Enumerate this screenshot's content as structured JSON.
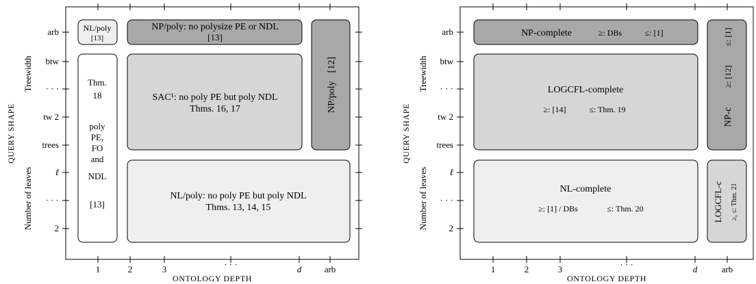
{
  "left_panel": {
    "y_group_top": "Treewidth",
    "y_group_bottom": "Number of leaves",
    "y_axis_title": "QUERY SHAPE",
    "x_axis_title": "ONTOLOGY DEPTH",
    "y_ticks": [
      "arb",
      "btw",
      "· · ·",
      "tw 2",
      "trees",
      "ℓ",
      "· · ·",
      "2"
    ],
    "x_ticks": [
      "1",
      "2",
      "3",
      "· · ·",
      "d",
      "arb"
    ],
    "regions": {
      "nlpoly_small": {
        "line1": "NL/poly",
        "line2": "[13]"
      },
      "nppoly_top": {
        "line1": "NP/poly: no polysize PE or NDL",
        "line2": "[13]"
      },
      "nppoly_right": {
        "line1": "NP/poly",
        "line2": "[12]"
      },
      "depth1_column": {
        "lines": [
          "Thm.",
          "18",
          "poly",
          "PE,",
          "FO",
          "and",
          "NDL",
          "[13]"
        ]
      },
      "sac1": {
        "line1": "SAC¹: no poly PE but poly NDL",
        "line2": "Thms. 16, 17"
      },
      "nlpoly_big": {
        "line1": "NL/poly: no poly PE but poly NDL",
        "line2": "Thms. 13, 14, 15"
      }
    }
  },
  "right_panel": {
    "y_group_top": "Treewidth",
    "y_group_bottom": "Number of leaves",
    "y_axis_title": "QUERY SHAPE",
    "x_axis_title": "ONTOLOGY DEPTH",
    "y_ticks": [
      "arb",
      "btw",
      "· · ·",
      "tw 2",
      "trees",
      "ℓ",
      "· · ·",
      "2"
    ],
    "x_ticks": [
      "1",
      "2",
      "3",
      "· · ·",
      "d",
      "arb"
    ],
    "regions": {
      "np_complete": {
        "title": "NP-complete",
        "ge": "≥: DBs",
        "le": "≤: [1]"
      },
      "logcfl_complete": {
        "title": "LOGCFL-complete",
        "ge": "≥: [14]",
        "le": "≤: Thm. 19"
      },
      "nl_complete": {
        "title": "NL-complete",
        "ge": "≥: [1] / DBs",
        "le": "≤: Thm. 20"
      },
      "npc_right": {
        "title": "NP-c",
        "ge": "≥: [12]",
        "le": "≤: [1]"
      },
      "logcflc_right": {
        "title": "LOGCFL-c",
        "sub": "≥, ≤: Thm. 21"
      }
    }
  },
  "colors": {
    "dark": "#a8a8a8",
    "mid": "#d6d6d6",
    "light": "#efefef",
    "white": "#ffffff",
    "stroke": "#000000"
  }
}
